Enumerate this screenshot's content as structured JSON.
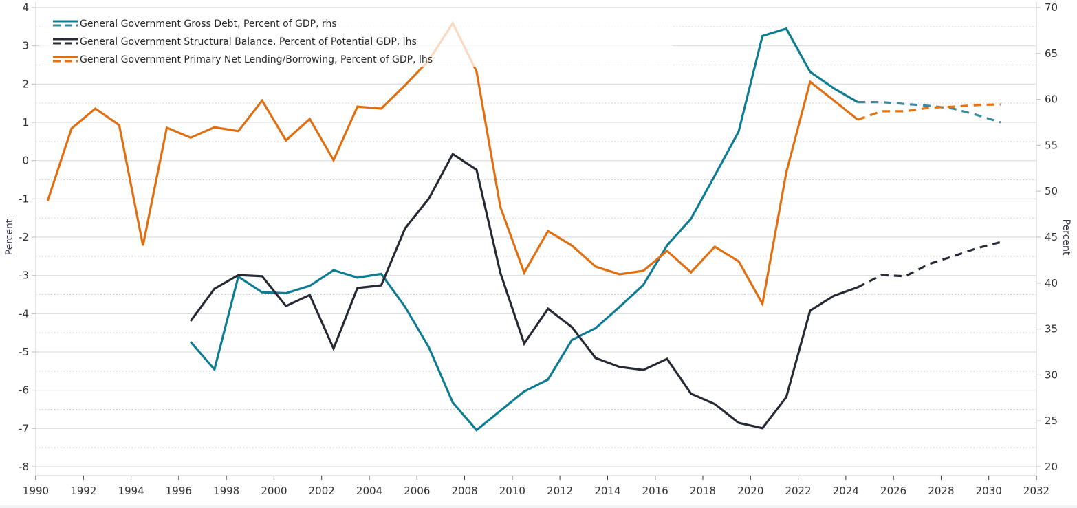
{
  "chart_data": {
    "type": "line",
    "title": "",
    "xlabel": "",
    "ylabel_left": "Percent",
    "ylabel_right": "Percent",
    "x_range": [
      1990,
      2032
    ],
    "x_ticks": [
      1990,
      1992,
      1994,
      1996,
      1998,
      2000,
      2002,
      2004,
      2006,
      2008,
      2010,
      2012,
      2014,
      2016,
      2018,
      2020,
      2022,
      2024,
      2026,
      2028,
      2030,
      2032
    ],
    "ylim_left": [
      -8,
      4
    ],
    "y_ticks_left": [
      4,
      3,
      2,
      1,
      0,
      -1,
      -2,
      -3,
      -4,
      -5,
      -6,
      -7,
      -8
    ],
    "ylim_right": [
      20,
      70
    ],
    "y_ticks_right": [
      70,
      65,
      60,
      55,
      50,
      45,
      40,
      35,
      30,
      25,
      20
    ],
    "grid": true,
    "legend_position": "top-left",
    "forecast_start": 2024,
    "series": [
      {
        "name": "General Government Gross Debt, Percent of GDP, rhs",
        "axis": "right",
        "color": "#0e7c93",
        "forecast_color": "#3a8a9e",
        "x": [
          1996,
          1997,
          1998,
          1999,
          2000,
          2001,
          2002,
          2003,
          2004,
          2005,
          2006,
          2007,
          2008,
          2009,
          2010,
          2011,
          2012,
          2013,
          2014,
          2015,
          2016,
          2017,
          2018,
          2019,
          2020,
          2021,
          2022,
          2023,
          2024,
          2025,
          2026,
          2027,
          2028,
          2029,
          2030
        ],
        "values": [
          33.6,
          30.6,
          40.7,
          39.0,
          38.9,
          39.7,
          41.4,
          40.6,
          41.0,
          37.4,
          33.0,
          27.0,
          24.0,
          26.1,
          28.2,
          29.5,
          33.8,
          35.1,
          37.4,
          39.8,
          44.1,
          47.0,
          51.7,
          56.5,
          66.9,
          67.7,
          63.0,
          61.2,
          59.7,
          59.7,
          59.5,
          59.3,
          59.0,
          58.3,
          57.5
        ]
      },
      {
        "name": "General Government Structural Balance, Percent of Potential GDP, lhs",
        "axis": "left",
        "color": "#262a35",
        "forecast_color": "#262a35",
        "x": [
          1996,
          1997,
          1998,
          1999,
          2000,
          2001,
          2002,
          2003,
          2004,
          2005,
          2006,
          2007,
          2008,
          2009,
          2010,
          2011,
          2012,
          2013,
          2014,
          2015,
          2016,
          2017,
          2018,
          2019,
          2020,
          2021,
          2022,
          2023,
          2024,
          2025,
          2026,
          2027,
          2028,
          2029,
          2030
        ],
        "values": [
          -4.19,
          -3.35,
          -2.99,
          -3.02,
          -3.8,
          -3.51,
          -4.91,
          -3.33,
          -3.26,
          -1.77,
          -0.99,
          0.17,
          -0.24,
          -2.93,
          -4.78,
          -3.87,
          -4.35,
          -5.16,
          -5.39,
          -5.47,
          -5.18,
          -6.09,
          -6.36,
          -6.85,
          -6.99,
          -6.18,
          -3.92,
          -3.53,
          -3.31,
          -2.99,
          -3.02,
          -2.7,
          -2.5,
          -2.29,
          -2.13
        ]
      },
      {
        "name": "General Government Primary Net Lending/Borrowing, Percent of GDP, lhs",
        "axis": "left",
        "color": "#e06f12",
        "forecast_color": "#e8730e",
        "x": [
          1990,
          1991,
          1992,
          1993,
          1994,
          1995,
          1996,
          1997,
          1998,
          1999,
          2000,
          2001,
          2002,
          2003,
          2004,
          2005,
          2006,
          2007,
          2008,
          2009,
          2010,
          2011,
          2012,
          2013,
          2014,
          2015,
          2016,
          2017,
          2018,
          2019,
          2020,
          2021,
          2022,
          2023,
          2024,
          2025,
          2026,
          2027,
          2028,
          2029,
          2030
        ],
        "values": [
          -1.05,
          0.84,
          1.36,
          0.93,
          -2.22,
          0.86,
          0.6,
          0.87,
          0.77,
          1.57,
          0.53,
          1.09,
          0.01,
          1.41,
          1.36,
          1.97,
          2.62,
          3.59,
          2.33,
          -1.21,
          -2.93,
          -1.84,
          -2.22,
          -2.77,
          -2.97,
          -2.88,
          -2.36,
          -2.92,
          -2.25,
          -2.63,
          -3.74,
          -0.31,
          2.06,
          1.57,
          1.07,
          1.29,
          1.29,
          1.38,
          1.41,
          1.45,
          1.47
        ]
      }
    ]
  }
}
